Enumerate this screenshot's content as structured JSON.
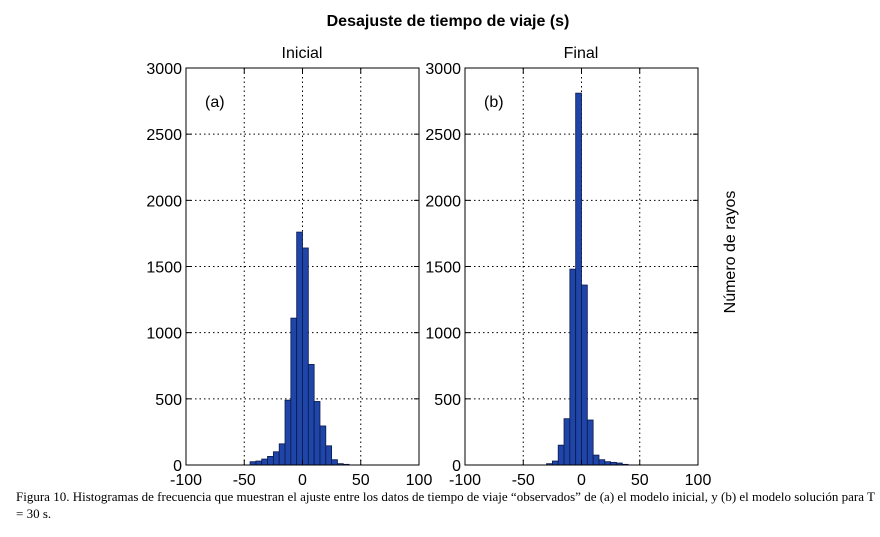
{
  "figure": {
    "title": "Desajuste de tiempo de viaje (s)",
    "ylabel": "Número de rayos",
    "caption": "Figura 10. Histogramas de frecuencia que muestran el ajuste entre los datos de tiempo de viaje “observados” de (a) el modelo inicial, y (b) el modelo solución para T = 30 s."
  },
  "colors": {
    "bar_fill": "#1f45a8",
    "bar_edge": "#0a1a4a",
    "grid": "#000000"
  },
  "chart_data": [
    {
      "type": "bar",
      "title": "Inicial",
      "panel_label": "(a)",
      "xlim": [
        -100,
        100
      ],
      "ylim": [
        0,
        3000
      ],
      "xticks": [
        -100,
        -50,
        0,
        50,
        100
      ],
      "yticks": [
        0,
        500,
        1000,
        1500,
        2000,
        2500,
        3000
      ],
      "grid": true,
      "bin_width": 5,
      "bin_centers": [
        -42.5,
        -37.5,
        -32.5,
        -27.5,
        -22.5,
        -17.5,
        -12.5,
        -7.5,
        -2.5,
        2.5,
        7.5,
        12.5,
        17.5,
        22.5,
        27.5,
        32.5,
        37.5
      ],
      "values": [
        25,
        30,
        45,
        65,
        100,
        160,
        490,
        1110,
        1760,
        1640,
        760,
        480,
        295,
        145,
        40,
        10,
        5
      ]
    },
    {
      "type": "bar",
      "title": "Final",
      "panel_label": "(b)",
      "xlim": [
        -100,
        100
      ],
      "ylim": [
        0,
        3000
      ],
      "xticks": [
        -100,
        -50,
        0,
        50,
        100
      ],
      "yticks": [
        0,
        500,
        1000,
        1500,
        2000,
        2500,
        3000
      ],
      "grid": true,
      "bin_width": 5,
      "bin_centers": [
        -27.5,
        -22.5,
        -17.5,
        -12.5,
        -7.5,
        -2.5,
        2.5,
        7.5,
        12.5,
        17.5,
        22.5,
        27.5,
        32.5,
        37.5
      ],
      "values": [
        10,
        30,
        150,
        350,
        1480,
        2810,
        1360,
        340,
        75,
        40,
        25,
        20,
        15,
        5
      ]
    }
  ]
}
